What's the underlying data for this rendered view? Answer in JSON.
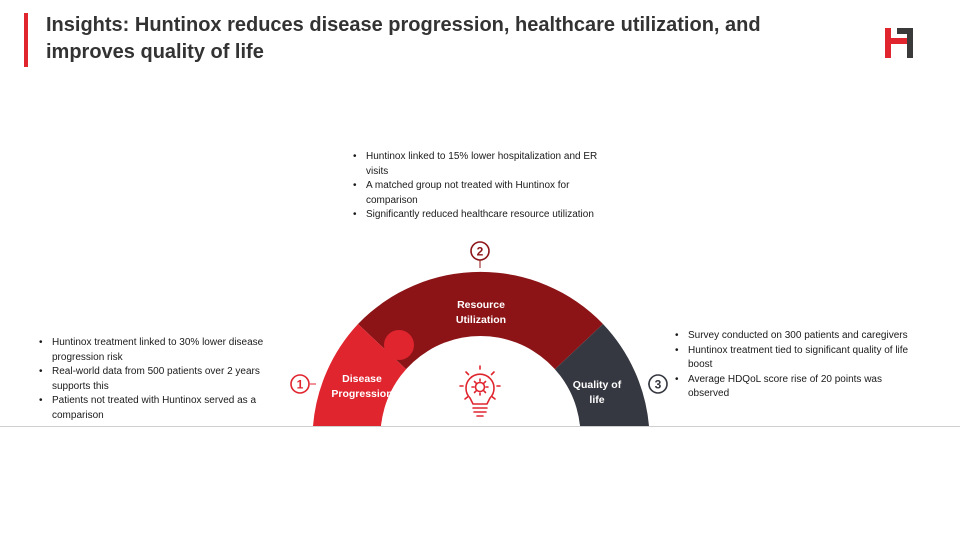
{
  "header": {
    "title": "Insights: Huntinox reduces disease progression, healthcare utilization, and improves quality of life"
  },
  "colors": {
    "accent": "#e0252f",
    "resource": "#8c1417",
    "disease": "#e0252f",
    "quality": "#353840"
  },
  "segments": [
    {
      "number": "1",
      "label_lines": [
        "Disease",
        "Progression"
      ],
      "bullets": [
        "Huntinox treatment linked to 30% lower disease progression risk",
        "Real-world data from 500 patients over 2 years supports this",
        "Patients not treated with Huntinox served as a comparison"
      ]
    },
    {
      "number": "2",
      "label_lines": [
        "Resource",
        "Utilization"
      ],
      "bullets": [
        "Huntinox linked to 15% lower hospitalization and ER visits",
        "A matched group not treated with Huntinox for comparison",
        "Significantly reduced healthcare resource utilization"
      ]
    },
    {
      "number": "3",
      "label_lines": [
        "Quality of",
        "life"
      ],
      "bullets": [
        "Survey conducted on 300 patients and caregivers",
        "Huntinox treatment tied to significant quality of life boost",
        "Average HDQoL score rise of 20 points was observed"
      ]
    }
  ],
  "center_icon": "lightbulb-gear-icon"
}
